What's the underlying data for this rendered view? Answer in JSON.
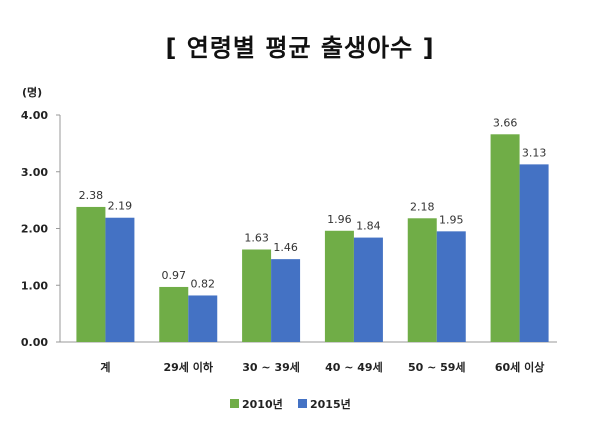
{
  "chart_data": {
    "type": "bar",
    "title": "[ 연령별 평균 출생아수 ]",
    "ylabel": "(명)",
    "xlabel": "",
    "categories": [
      "계",
      "29세 이하",
      "30 ~ 39세",
      "40 ~ 49세",
      "50 ~ 59세",
      "60세 이상"
    ],
    "series": [
      {
        "name": "2010년",
        "color": "#70AD47",
        "values": [
          2.38,
          0.97,
          1.63,
          1.96,
          2.18,
          3.66
        ],
        "labels": [
          "2.38",
          "0.97",
          "1.63",
          "1.96",
          "2.18",
          "3.66"
        ]
      },
      {
        "name": "2015년",
        "color": "#4472C4",
        "values": [
          2.19,
          0.82,
          1.46,
          1.84,
          1.95,
          3.13
        ],
        "labels": [
          "2.19",
          "0.82",
          "1.46",
          "1.84",
          "1.95",
          "3.13"
        ]
      }
    ],
    "ylim": [
      0,
      4
    ],
    "yticks": [
      "0.00",
      "1.00",
      "2.00",
      "3.00",
      "4.00"
    ],
    "grid": false,
    "legend": "bottom"
  }
}
